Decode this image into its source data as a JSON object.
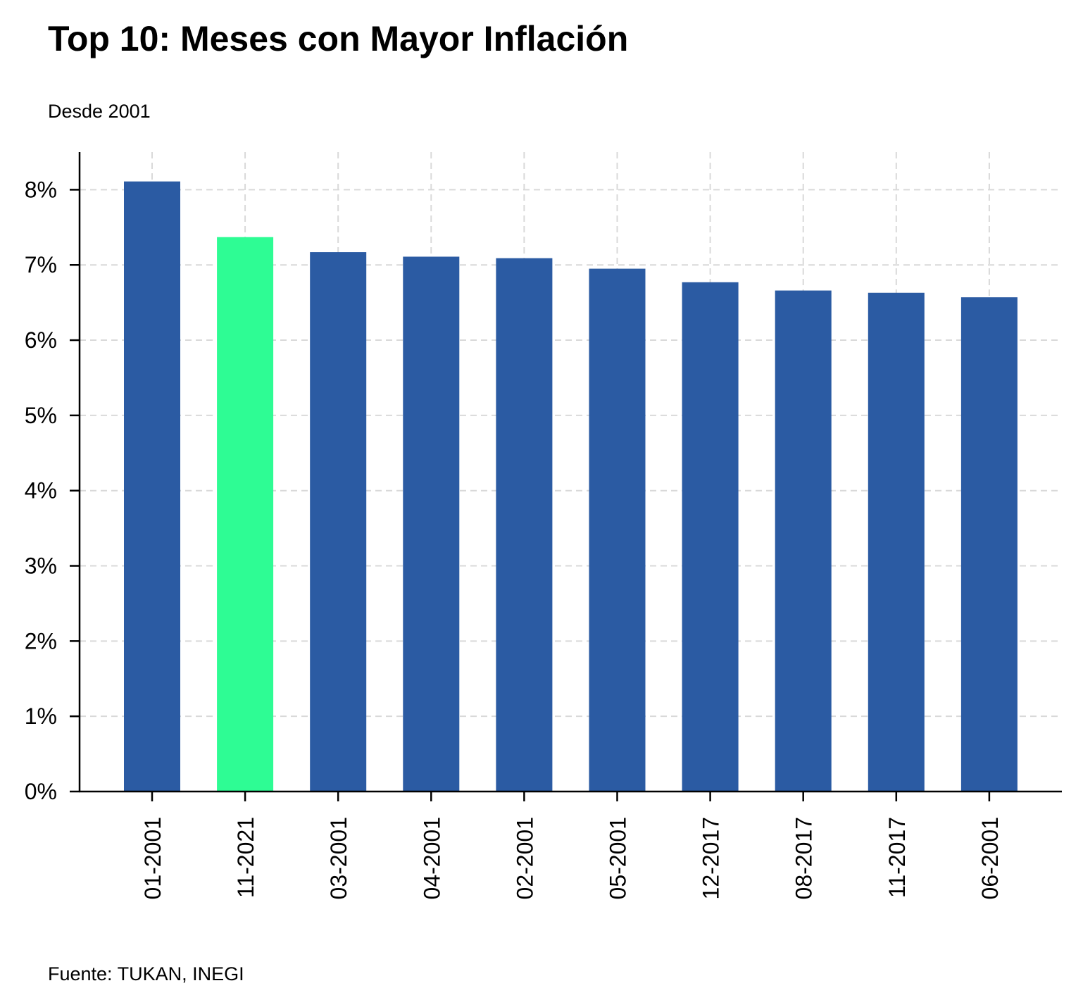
{
  "title": "Top 10: Meses con Mayor Inflación",
  "subtitle": "Desde 2001",
  "source": "Fuente: TUKAN, INEGI",
  "colors": {
    "bar": "#2b5ba3",
    "highlight": "#2efc94",
    "grid": "#d9d9d9",
    "axis": "#000000"
  },
  "chart_data": {
    "type": "bar",
    "title": "Top 10: Meses con Mayor Inflación",
    "subtitle": "Desde 2001",
    "xlabel": "",
    "ylabel": "",
    "categories": [
      "01-2001",
      "11-2021",
      "03-2001",
      "04-2001",
      "02-2001",
      "05-2001",
      "12-2017",
      "08-2017",
      "11-2017",
      "06-2001"
    ],
    "values": [
      8.11,
      7.37,
      7.17,
      7.11,
      7.09,
      6.95,
      6.77,
      6.66,
      6.63,
      6.57
    ],
    "highlight_category": "11-2021",
    "unit": "%",
    "ylim": [
      0,
      8.5
    ],
    "yticks": [
      0,
      1,
      2,
      3,
      4,
      5,
      6,
      7,
      8
    ],
    "ytick_labels": [
      "0%",
      "1%",
      "2%",
      "3%",
      "4%",
      "5%",
      "6%",
      "7%",
      "8%"
    ],
    "grid": true,
    "grid_style": "dashed"
  }
}
